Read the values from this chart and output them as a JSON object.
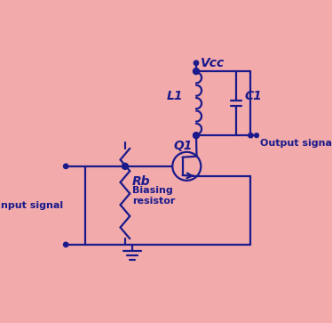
{
  "bg_color": "#F2AAAA",
  "line_color": "#1a1a8c",
  "text_color": "#1a1a8c",
  "fig_width": 3.74,
  "fig_height": 3.63,
  "dpi": 100,
  "labels": {
    "vcc": "Vcc",
    "l1": "L1",
    "c1": "C1",
    "q1": "Q1",
    "rb": "Rb",
    "biasing": "Biasing\nresistor",
    "input": "Input signal",
    "output": "Output signal"
  }
}
